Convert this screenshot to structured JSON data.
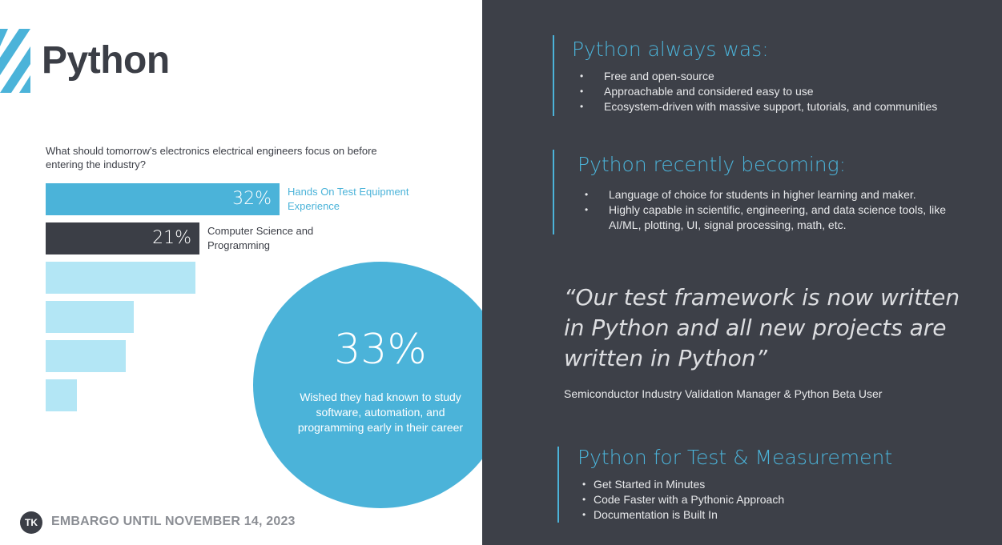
{
  "title": "Python",
  "question": "What should tomorrow's electronics electrical engineers focus on before entering the industry?",
  "chart_data": {
    "type": "bar",
    "orientation": "horizontal",
    "title": "What should tomorrow's electronics electrical engineers focus on before entering the industry?",
    "categories": [
      "Hands On Test Equipment Experience",
      "Computer Science and Programming",
      "",
      "",
      "",
      ""
    ],
    "values": [
      32,
      21,
      20.5,
      12,
      11,
      4.3
    ],
    "value_labels": [
      "32%",
      "21%",
      "",
      "",
      "",
      ""
    ],
    "colors": [
      "#4bb3d9",
      "#3b3e46",
      "#b3e6f5",
      "#b3e6f5",
      "#b3e6f5",
      "#b3e6f5"
    ],
    "label_colors": [
      "#4bb3d9",
      "#3b3e46",
      "",
      "",
      "",
      ""
    ],
    "xlim": [
      0,
      32
    ]
  },
  "highlight": {
    "percent": "33%",
    "text": "Wished they had known to study software, automation, and programming early in their career"
  },
  "footer": {
    "logo": "TK",
    "text": "EMBARGO UNTIL NOVEMBER 14, 2023"
  },
  "sections": {
    "always": {
      "heading": "Python always was:",
      "items": [
        "Free and open-source",
        "Approachable and considered easy to use",
        "Ecosystem-driven with massive support, tutorials, and communities"
      ]
    },
    "becoming": {
      "heading": "Python recently becoming:",
      "items": [
        "Language of choice for students in higher learning and maker.",
        "Highly capable in scientific, engineering, and data science tools, like AI/ML, plotting, UI, signal processing, math, etc."
      ]
    },
    "tm": {
      "heading": "Python for Test & Measurement",
      "items": [
        "Get Started in Minutes",
        "Code Faster with a Pythonic Approach",
        "Documentation is Built In"
      ]
    }
  },
  "quote": {
    "text": "“Our test framework is now written in Python and all new projects are written in Python”",
    "author": "Semiconductor Industry Validation Manager & Python Beta User"
  },
  "colors": {
    "accent": "#4bb3d9",
    "dark": "#3b3e46",
    "panel": "#3d4048",
    "light_bar": "#b3e6f5"
  }
}
